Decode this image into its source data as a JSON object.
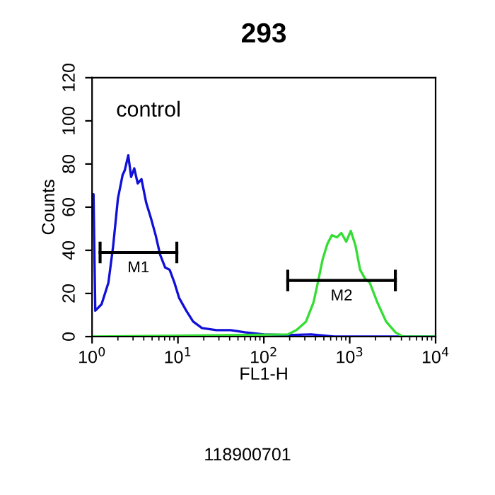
{
  "chart_data": {
    "type": "line",
    "title": "293",
    "xlabel": "FL1-H",
    "ylabel": "Counts",
    "log": "x",
    "xlim": [
      1,
      10000
    ],
    "ylim": [
      0,
      120
    ],
    "xticks": [
      {
        "value": 1,
        "label": "10$^{0}$"
      },
      {
        "value": 10,
        "label": "10$^{1}$"
      },
      {
        "value": 100,
        "label": "10$^{2}$"
      },
      {
        "value": 1000,
        "label": "10$^{3}$"
      },
      {
        "value": 10000,
        "label": "10$^{4}$"
      }
    ],
    "yticks": [
      0,
      20,
      40,
      60,
      80,
      100,
      120
    ],
    "grid": false,
    "marker": "none",
    "line_style": "solid",
    "series": [
      {
        "color": "#1010d8",
        "x": [
          1.0,
          1.04,
          1.09,
          1.29,
          1.55,
          1.76,
          2.0,
          2.27,
          2.4,
          2.64,
          2.85,
          3.1,
          3.4,
          3.76,
          4.27,
          4.84,
          5.5,
          6.2,
          7.1,
          8.0,
          9.1,
          10.3,
          12.5,
          15,
          19,
          28,
          41,
          60,
          100,
          190,
          355,
          660,
          1250,
          4400,
          10000
        ],
        "values": [
          66,
          66,
          12,
          15,
          25,
          42,
          64,
          75,
          77,
          84,
          74,
          78,
          71,
          73,
          62,
          55,
          47,
          38,
          32,
          31,
          25,
          18,
          12,
          7,
          4,
          3,
          3,
          2,
          1,
          0.7,
          1,
          0,
          0,
          0,
          0
        ]
      },
      {
        "color": "#33dd33",
        "x": [
          1,
          190,
          240,
          310,
          380,
          425,
          485,
          550,
          620,
          710,
          800,
          910,
          1030,
          1170,
          1320,
          1500,
          1710,
          2090,
          2650,
          3400,
          4150,
          10000
        ],
        "values": [
          0,
          1,
          3,
          7,
          16,
          25,
          36,
          43,
          47,
          46,
          48,
          44,
          49,
          42,
          31,
          27,
          25,
          16,
          7,
          2,
          0,
          0
        ]
      },
      {
        "color": "#000000",
        "x": [
          1.24,
          9.7
        ],
        "values": [
          39,
          39
        ],
        "errors": [
          5,
          5
        ]
      },
      {
        "color": "#000000",
        "x": [
          190,
          3400
        ],
        "values": [
          26,
          26
        ],
        "errors": [
          5,
          5
        ]
      }
    ],
    "annotations": [
      "M1",
      "M2",
      "control",
      "118900701"
    ]
  }
}
